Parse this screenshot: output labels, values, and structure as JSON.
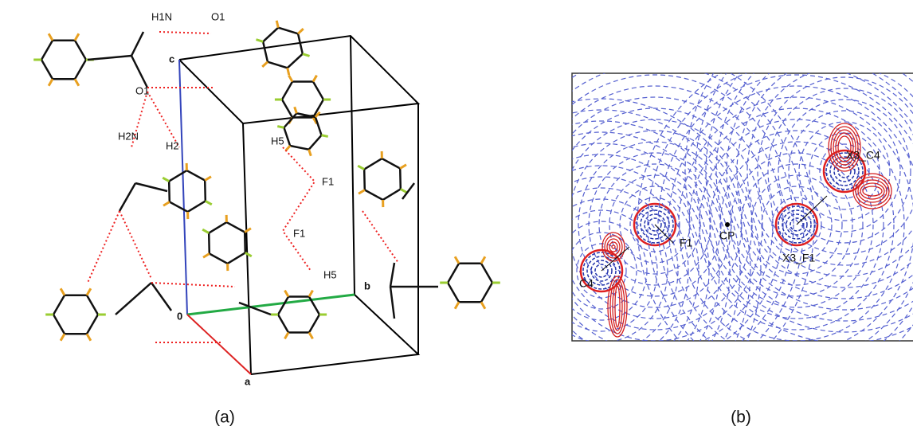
{
  "panel_a": {
    "caption": "(a)",
    "labels": [
      "H1N",
      "O1",
      "c",
      "O1",
      "H2N",
      "H2",
      "H5",
      "F1",
      "F1",
      "H5",
      "b",
      "0",
      "a"
    ]
  },
  "panel_b": {
    "caption": "(b)",
    "labels": [
      "X3_C4",
      "CP",
      "F1",
      "X3_F1",
      "C4"
    ]
  }
}
